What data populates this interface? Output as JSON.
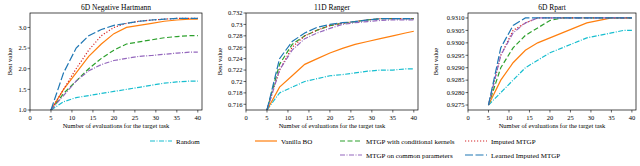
{
  "chart_data": [
    {
      "type": "line",
      "title": "6D Negative Hartmann",
      "x_label": "Number of evaluations for the target task",
      "y_label": "Best value",
      "x": [
        5,
        8,
        11,
        14,
        17,
        20,
        23,
        26,
        29,
        32,
        35,
        38,
        40
      ],
      "xlim": [
        0,
        41
      ],
      "xticks": [
        0,
        5,
        10,
        15,
        20,
        25,
        30,
        35,
        40
      ],
      "ylim": [
        1.0,
        3.35
      ],
      "yticks": [
        {
          "value": 1.0,
          "label": "1.0"
        },
        1.5,
        {
          "value": 2.0,
          "label": "2.0"
        },
        2.5,
        {
          "value": 3.0,
          "label": "3.0"
        }
      ],
      "grid": false,
      "legend": "bottom",
      "series": [
        {
          "name": "Random",
          "color": "#17becf",
          "line_style": "dashdot",
          "values": [
            1.0,
            1.2,
            1.3,
            1.35,
            1.4,
            1.45,
            1.5,
            1.55,
            1.6,
            1.65,
            1.68,
            1.7,
            1.7
          ]
        },
        {
          "name": "Vanilla BO",
          "color": "#ff7f0e",
          "line_style": "solid",
          "values": [
            1.0,
            1.5,
            1.9,
            2.3,
            2.6,
            2.85,
            3.0,
            3.05,
            3.1,
            3.15,
            3.18,
            3.2,
            3.2
          ]
        },
        {
          "name": "MTGP with conditional kernels",
          "color": "#2ca02c",
          "line_style": "dashed",
          "values": [
            1.0,
            1.4,
            1.7,
            2.0,
            2.25,
            2.45,
            2.6,
            2.65,
            2.7,
            2.75,
            2.78,
            2.8,
            2.8
          ]
        },
        {
          "name": "Imputed MTGP",
          "color": "#d62728",
          "line_style": "dotted",
          "values": [
            1.0,
            1.5,
            2.0,
            2.45,
            2.8,
            3.0,
            3.1,
            3.15,
            3.18,
            3.2,
            3.22,
            3.22,
            3.22
          ]
        },
        {
          "name": "MTGP on common parameters",
          "color": "#9467bd",
          "line_style": "dashdot",
          "values": [
            1.0,
            1.35,
            1.7,
            1.95,
            2.1,
            2.2,
            2.25,
            2.3,
            2.32,
            2.35,
            2.38,
            2.4,
            2.4
          ]
        },
        {
          "name": "Learned Imputed MTGP",
          "color": "#1f77b4",
          "line_style": "longdash",
          "values": [
            1.0,
            1.9,
            2.5,
            2.8,
            2.95,
            3.05,
            3.1,
            3.15,
            3.18,
            3.2,
            3.22,
            3.22,
            3.22
          ]
        }
      ]
    },
    {
      "type": "line",
      "title": "11D Ranger",
      "x_label": "Number of evaluations for the target task",
      "y_label": "Best value",
      "x": [
        5,
        8,
        11,
        14,
        17,
        20,
        23,
        26,
        29,
        32,
        35,
        38,
        40
      ],
      "xlim": [
        0,
        41
      ],
      "xticks": [
        0,
        5,
        10,
        15,
        20,
        25,
        30,
        35,
        40
      ],
      "ylim": [
        0.715,
        0.732
      ],
      "yticks": [
        0.716,
        0.718,
        0.72,
        0.722,
        0.724,
        0.726,
        0.728,
        0.73,
        0.732
      ],
      "grid": false,
      "series": [
        {
          "name": "Random",
          "color": "#17becf",
          "line_style": "dashdot",
          "values": [
            0.715,
            0.718,
            0.719,
            0.72,
            0.7205,
            0.721,
            0.7212,
            0.7215,
            0.7218,
            0.722,
            0.722,
            0.7222,
            0.7222
          ]
        },
        {
          "name": "Vanilla BO",
          "color": "#ff7f0e",
          "line_style": "solid",
          "values": [
            0.715,
            0.719,
            0.721,
            0.723,
            0.724,
            0.725,
            0.7258,
            0.7265,
            0.727,
            0.7275,
            0.728,
            0.7285,
            0.7288
          ]
        },
        {
          "name": "MTGP with conditional kernels",
          "color": "#2ca02c",
          "line_style": "dashed",
          "values": [
            0.715,
            0.723,
            0.7265,
            0.728,
            0.729,
            0.7298,
            0.7302,
            0.7305,
            0.7308,
            0.731,
            0.731,
            0.731,
            0.731
          ]
        },
        {
          "name": "Imputed MTGP",
          "color": "#d62728",
          "line_style": "dotted",
          "values": [
            0.715,
            0.722,
            0.726,
            0.728,
            0.729,
            0.7298,
            0.7302,
            0.7305,
            0.7308,
            0.731,
            0.731,
            0.731,
            0.731
          ]
        },
        {
          "name": "MTGP on common parameters",
          "color": "#9467bd",
          "line_style": "dashdot",
          "values": [
            0.715,
            0.722,
            0.7255,
            0.7275,
            0.7285,
            0.7293,
            0.73,
            0.7303,
            0.7305,
            0.7307,
            0.7308,
            0.7308,
            0.7308
          ]
        },
        {
          "name": "Learned Imputed MTGP",
          "color": "#1f77b4",
          "line_style": "longdash",
          "values": [
            0.715,
            0.724,
            0.727,
            0.7285,
            0.7295,
            0.73,
            0.7303,
            0.7305,
            0.7308,
            0.731,
            0.731,
            0.731,
            0.731
          ]
        }
      ]
    },
    {
      "type": "line",
      "title": "6D Rpart",
      "x_label": "Number of evaluations for the target task",
      "y_label": "Best value",
      "x": [
        5,
        8,
        11,
        14,
        17,
        20,
        23,
        26,
        29,
        32,
        35,
        38,
        40
      ],
      "xlim": [
        0,
        41
      ],
      "xticks": [
        0,
        5,
        10,
        15,
        20,
        25,
        30,
        35,
        40
      ],
      "ylim": [
        0.9273,
        0.9312
      ],
      "yticks": [
        0.9275,
        {
          "value": 0.928,
          "label": "0.9280"
        },
        0.9285,
        {
          "value": 0.929,
          "label": "0.9290"
        },
        0.9295,
        {
          "value": 0.93,
          "label": "0.9300"
        },
        0.9305,
        {
          "value": 0.931,
          "label": "0.9310"
        }
      ],
      "grid": false,
      "series": [
        {
          "name": "Random",
          "color": "#17becf",
          "line_style": "dashdot",
          "values": [
            0.9275,
            0.928,
            0.9285,
            0.929,
            0.9293,
            0.9296,
            0.9298,
            0.93,
            0.9302,
            0.9303,
            0.9304,
            0.9305,
            0.9305
          ]
        },
        {
          "name": "Vanilla BO",
          "color": "#ff7f0e",
          "line_style": "solid",
          "values": [
            0.9275,
            0.9285,
            0.9292,
            0.9297,
            0.93,
            0.9302,
            0.9304,
            0.9306,
            0.9308,
            0.9309,
            0.931,
            0.931,
            0.931
          ]
        },
        {
          "name": "MTGP with conditional kernels",
          "color": "#2ca02c",
          "line_style": "dashed",
          "values": [
            0.9275,
            0.929,
            0.9298,
            0.9303,
            0.9306,
            0.9309,
            0.931,
            0.931,
            0.931,
            0.931,
            0.931,
            0.931,
            0.931
          ]
        },
        {
          "name": "Imputed MTGP",
          "color": "#d62728",
          "line_style": "dotted",
          "values": [
            0.9275,
            0.9295,
            0.9305,
            0.9308,
            0.931,
            0.931,
            0.931,
            0.931,
            0.931,
            0.931,
            0.931,
            0.931,
            0.931
          ]
        },
        {
          "name": "MTGP on common parameters",
          "color": "#9467bd",
          "line_style": "dashdot",
          "values": [
            0.9275,
            0.9295,
            0.9304,
            0.9308,
            0.931,
            0.931,
            0.931,
            0.931,
            0.931,
            0.931,
            0.931,
            0.931,
            0.931
          ]
        },
        {
          "name": "Learned Imputed MTGP",
          "color": "#1f77b4",
          "line_style": "longdash",
          "values": [
            0.9275,
            0.9298,
            0.9307,
            0.931,
            0.931,
            0.931,
            0.931,
            0.931,
            0.931,
            0.931,
            0.931,
            0.931,
            0.931
          ]
        }
      ]
    }
  ]
}
